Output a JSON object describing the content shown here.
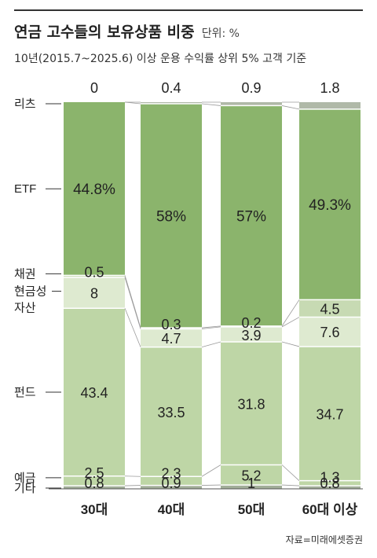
{
  "header": {
    "title": "연금 고수들의 보유상품 비중",
    "unit": "단위: %",
    "subtitle": "10년(2015.7~2025.6) 이상 운용 수익률 상위 5% 고객 기준"
  },
  "source": "자료=미래에셋증권",
  "colors": {
    "리츠": "#b0b9a8",
    "ETF": "#8bb46c",
    "채권": "#c7dab3",
    "현금성 자산": "#deead0",
    "펀드": "#bed6a6",
    "예금": "#bed6a6",
    "기타": "#a2ae99"
  },
  "chart_data": {
    "type": "bar",
    "stacked": true,
    "categories": [
      "30대",
      "40대",
      "50대",
      "60대 이상"
    ],
    "series": [
      {
        "name": "리츠",
        "values": [
          0,
          0.4,
          0.9,
          1.8
        ]
      },
      {
        "name": "ETF",
        "values": [
          44.8,
          58,
          57,
          49.3
        ]
      },
      {
        "name": "채권",
        "values": [
          0.5,
          0.3,
          0.2,
          4.5
        ]
      },
      {
        "name": "현금성 자산",
        "values": [
          8,
          4.7,
          3.9,
          7.6
        ]
      },
      {
        "name": "펀드",
        "values": [
          43.4,
          33.5,
          31.8,
          34.7
        ]
      },
      {
        "name": "예금",
        "values": [
          2.5,
          2.3,
          5.2,
          1.3
        ]
      },
      {
        "name": "기타",
        "values": [
          0.8,
          0.9,
          1,
          0.8
        ]
      }
    ],
    "data_labels": [
      [
        "0",
        "44.8%",
        "0.5",
        "8",
        "43.4",
        "2.5",
        "0.8"
      ],
      [
        "0.4",
        "58%",
        "0.3",
        "4.7",
        "33.5",
        "2.3",
        "0.9"
      ],
      [
        "0.9",
        "57%",
        "0.2",
        "3.9",
        "31.8",
        "5.2",
        "1"
      ],
      [
        "1.8",
        "49.3%",
        "4.5",
        "7.6",
        "34.7",
        "1.3",
        "0.8"
      ]
    ],
    "ylim": [
      0,
      100
    ]
  }
}
